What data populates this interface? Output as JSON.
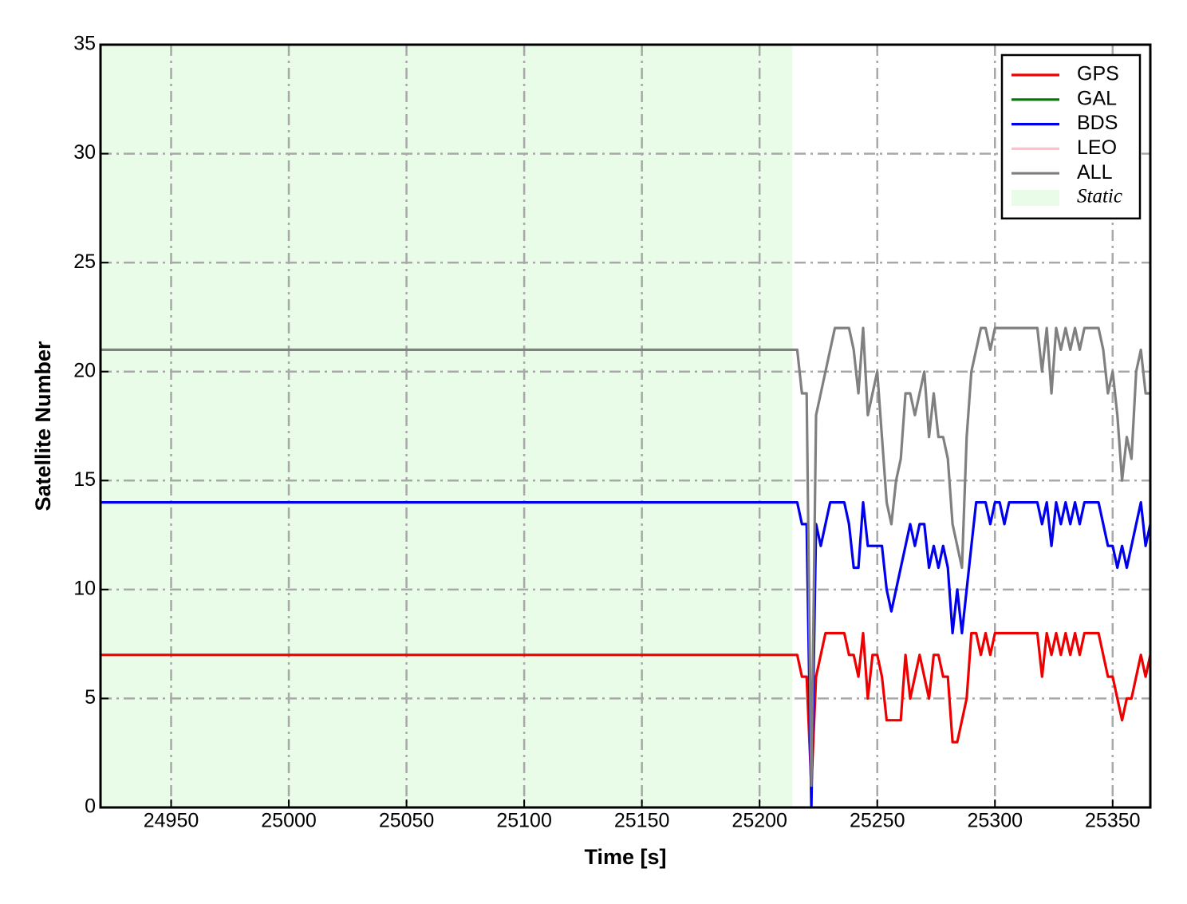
{
  "chart_data": {
    "type": "line",
    "x_label": "Time [s]",
    "y_label": "Satellite Number",
    "xlim": [
      24920,
      25366
    ],
    "ylim": [
      0,
      35
    ],
    "xticks": [
      24950,
      25000,
      25050,
      25100,
      25150,
      25200,
      25250,
      25300,
      25350
    ],
    "yticks": [
      0,
      5,
      10,
      15,
      20,
      25,
      30,
      35
    ],
    "grid": true,
    "legend": "upper right",
    "shaded_region": {
      "label": "Static",
      "x": [
        24920,
        25214
      ],
      "color": "#e8fce8"
    },
    "x": [
      24920,
      25216,
      25218,
      25220,
      25222,
      25224,
      25226,
      25228,
      25230,
      25232,
      25234,
      25236,
      25238,
      25240,
      25242,
      25244,
      25246,
      25248,
      25250,
      25252,
      25254,
      25256,
      25258,
      25260,
      25262,
      25264,
      25266,
      25268,
      25270,
      25272,
      25274,
      25276,
      25278,
      25280,
      25282,
      25284,
      25286,
      25288,
      25290,
      25292,
      25294,
      25296,
      25298,
      25300,
      25302,
      25304,
      25306,
      25308,
      25310,
      25312,
      25314,
      25316,
      25318,
      25320,
      25322,
      25324,
      25326,
      25328,
      25330,
      25332,
      25334,
      25336,
      25338,
      25340,
      25342,
      25344,
      25346,
      25348,
      25350,
      25352,
      25354,
      25356,
      25358,
      25360,
      25362,
      25364,
      25366
    ],
    "series": [
      {
        "name": "GPS",
        "color": "#ee0000",
        "values": [
          7,
          7,
          6,
          6,
          1,
          6,
          7,
          8,
          8,
          8,
          8,
          8,
          7,
          7,
          6,
          8,
          5,
          7,
          7,
          6,
          4,
          4,
          4,
          4,
          7,
          5,
          6,
          7,
          6,
          5,
          7,
          7,
          6,
          6,
          3,
          3,
          4,
          5,
          8,
          8,
          7,
          8,
          7,
          8,
          8,
          8,
          8,
          8,
          8,
          8,
          8,
          8,
          8,
          6,
          8,
          7,
          8,
          7,
          8,
          7,
          8,
          7,
          8,
          8,
          8,
          8,
          7,
          6,
          6,
          5,
          4,
          5,
          5,
          6,
          7,
          6,
          7
        ]
      },
      {
        "name": "GAL",
        "color": "#007a00",
        "values": [
          null,
          null,
          null,
          null,
          null,
          null,
          null,
          null,
          null,
          null,
          null,
          null,
          null,
          null,
          null,
          null,
          null,
          null,
          null,
          null,
          null,
          null,
          null,
          null,
          null,
          null,
          null,
          null,
          null,
          null,
          null,
          null,
          null,
          null,
          null,
          null,
          null,
          null,
          null,
          null,
          null,
          null,
          null,
          null,
          null,
          null,
          null,
          null,
          null,
          null,
          null,
          null,
          null,
          null,
          null,
          null,
          null,
          null,
          null,
          null,
          null,
          null,
          null,
          null,
          null,
          null,
          null,
          null,
          null,
          null,
          null,
          null,
          null,
          null,
          null,
          null,
          null
        ]
      },
      {
        "name": "BDS",
        "color": "#0000ee",
        "values": [
          14,
          14,
          13,
          13,
          0,
          13,
          12,
          13,
          14,
          14,
          14,
          14,
          13,
          11,
          11,
          14,
          12,
          12,
          12,
          12,
          10,
          9,
          10,
          11,
          12,
          13,
          12,
          13,
          13,
          11,
          12,
          11,
          12,
          11,
          8,
          10,
          8,
          10,
          12,
          14,
          14,
          14,
          13,
          14,
          14,
          13,
          14,
          14,
          14,
          14,
          14,
          14,
          14,
          13,
          14,
          12,
          14,
          13,
          14,
          13,
          14,
          13,
          14,
          14,
          14,
          14,
          13,
          12,
          12,
          11,
          12,
          11,
          12,
          13,
          14,
          12,
          13
        ]
      },
      {
        "name": "LEO",
        "color": "#ffc0cb",
        "values": [
          null,
          null,
          null,
          null,
          null,
          null,
          null,
          null,
          null,
          null,
          null,
          null,
          null,
          null,
          null,
          null,
          null,
          null,
          null,
          null,
          null,
          null,
          null,
          null,
          null,
          null,
          null,
          null,
          null,
          null,
          null,
          null,
          null,
          null,
          null,
          null,
          null,
          null,
          null,
          null,
          null,
          null,
          null,
          null,
          null,
          null,
          null,
          null,
          null,
          null,
          null,
          null,
          null,
          null,
          null,
          null,
          null,
          null,
          null,
          null,
          null,
          null,
          null,
          null,
          null,
          null,
          null,
          null,
          null,
          null,
          null,
          null,
          null,
          null,
          null,
          null,
          null
        ]
      },
      {
        "name": "ALL",
        "color": "#808080",
        "values": [
          21,
          21,
          19,
          19,
          1,
          18,
          19,
          20,
          21,
          22,
          22,
          22,
          22,
          21,
          19,
          22,
          18,
          19,
          20,
          17,
          14,
          13,
          15,
          16,
          19,
          19,
          18,
          19,
          20,
          17,
          19,
          17,
          17,
          16,
          13,
          12,
          11,
          17,
          20,
          21,
          22,
          22,
          21,
          22,
          22,
          22,
          22,
          22,
          22,
          22,
          22,
          22,
          22,
          20,
          22,
          19,
          22,
          21,
          22,
          21,
          22,
          21,
          22,
          22,
          22,
          22,
          21,
          19,
          20,
          18,
          15,
          17,
          16,
          20,
          21,
          19,
          19
        ]
      }
    ]
  }
}
